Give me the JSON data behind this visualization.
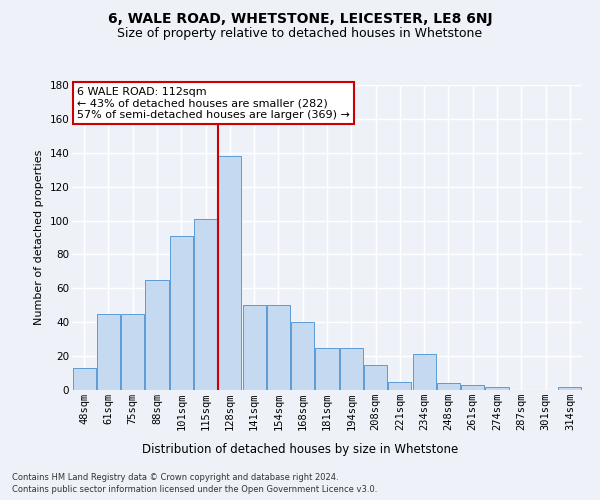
{
  "title1": "6, WALE ROAD, WHETSTONE, LEICESTER, LE8 6NJ",
  "title2": "Size of property relative to detached houses in Whetstone",
  "xlabel": "Distribution of detached houses by size in Whetstone",
  "ylabel": "Number of detached properties",
  "bar_labels": [
    "48sqm",
    "61sqm",
    "75sqm",
    "88sqm",
    "101sqm",
    "115sqm",
    "128sqm",
    "141sqm",
    "154sqm",
    "168sqm",
    "181sqm",
    "194sqm",
    "208sqm",
    "221sqm",
    "234sqm",
    "248sqm",
    "261sqm",
    "274sqm",
    "287sqm",
    "301sqm",
    "314sqm"
  ],
  "bar_heights": [
    13,
    45,
    45,
    65,
    91,
    101,
    138,
    50,
    50,
    40,
    25,
    25,
    15,
    5,
    21,
    4,
    3,
    2,
    0,
    0,
    2
  ],
  "ylim": [
    0,
    180
  ],
  "yticks": [
    0,
    20,
    40,
    60,
    80,
    100,
    120,
    140,
    160,
    180
  ],
  "bar_color": "#c5d9f1",
  "bar_edge_color": "#5b9bd5",
  "vline_position": 5.5,
  "vline_color": "#cc0000",
  "annotation_title": "6 WALE ROAD: 112sqm",
  "annotation_line1": "← 43% of detached houses are smaller (282)",
  "annotation_line2": "57% of semi-detached houses are larger (369) →",
  "annotation_box_color": "#cc0000",
  "footer1": "Contains HM Land Registry data © Crown copyright and database right 2024.",
  "footer2": "Contains public sector information licensed under the Open Government Licence v3.0.",
  "bg_color": "#eef2f8",
  "plot_bg_color": "#eef2f8",
  "grid_color": "#ffffff",
  "title1_fontsize": 10,
  "title2_fontsize": 9,
  "ylabel_fontsize": 8,
  "xlabel_fontsize": 8.5,
  "footer_fontsize": 6,
  "annot_fontsize": 8,
  "tick_fontsize": 7.5
}
